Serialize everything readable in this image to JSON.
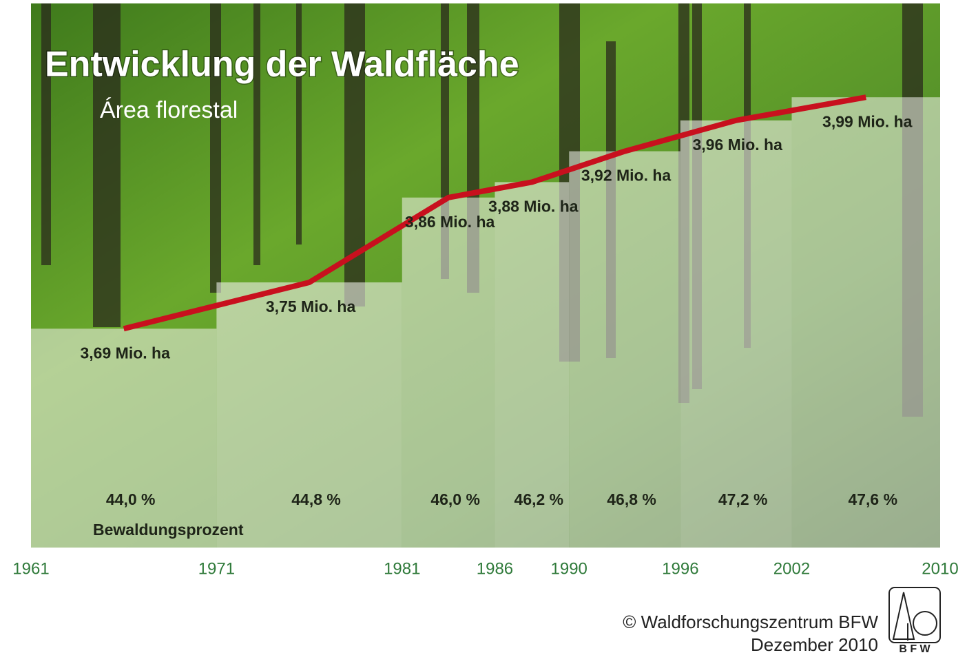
{
  "chart_data": {
    "type": "line",
    "title": "Entwicklung der Waldfläche",
    "subtitle": "Área florestal",
    "x": [
      1966,
      1976,
      1983.5,
      1988,
      1993,
      1999,
      2006
    ],
    "xlim": [
      1961,
      2010
    ],
    "xticks": [
      1961,
      1971,
      1981,
      1986,
      1990,
      1996,
      2002,
      2010
    ],
    "ylim": [
      3.4,
      4.05
    ],
    "series": [
      {
        "color": "#c8101e",
        "values": [
          3.69,
          3.75,
          3.86,
          3.88,
          3.92,
          3.96,
          3.99
        ],
        "value_labels": [
          "3,69 Mio. ha",
          "3,75 Mio. ha",
          "3,86 Mio. ha",
          "3,88 Mio. ha",
          "3,92 Mio. ha",
          "3,96 Mio. ha",
          "3,99 Mio. ha"
        ]
      }
    ],
    "percent": {
      "name": "Bewaldungsprozent",
      "values": [
        44.0,
        44.8,
        46.0,
        46.2,
        46.8,
        47.2,
        47.6
      ],
      "value_labels": [
        "44,0 %",
        "44,8 %",
        "46,0 %",
        "46,2 %",
        "46,8 %",
        "47,2 %",
        "47,6 %"
      ]
    }
  },
  "footer": {
    "copyright": "© Waldforschungszentrum BFW",
    "date": "Dezember 2010",
    "logo": "B F W"
  }
}
